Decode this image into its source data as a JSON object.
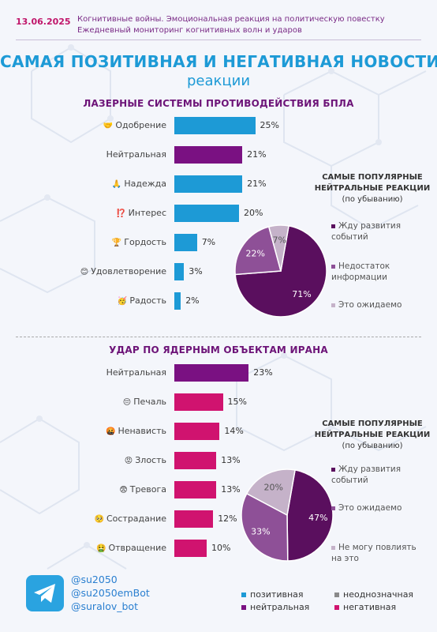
{
  "header": {
    "date": "13.06.2025",
    "subtitle_line1": "Когнитивные войны. Эмоциональная реакция на политическую повестку",
    "subtitle_line2": "Ежедневный мониторинг когнитивных волн и ударов",
    "title": "САМАЯ ПОЗИТИВНАЯ И НЕГАТИВНАЯ НОВОСТИ",
    "title_sub": "реакции"
  },
  "colors": {
    "positive": "#1d9ad6",
    "neutral": "#7a1182",
    "ambiguous": "#8a8a8a",
    "negative": "#d0136f",
    "pie_dark": "#5a0f5e",
    "pie_mid": "#8e5097",
    "pie_light": "#c5b2c9"
  },
  "chart_data": [
    {
      "type": "bar",
      "orientation": "horizontal",
      "title": "ЛАЗЕРНЫЕ СИСТЕМЫ ПРОТИВОДЕЙСТВИЯ БПЛА",
      "categories": [
        "Одобрение",
        "Нейтральная",
        "Надежда",
        "Интерес",
        "Гордость",
        "Удовлетворение",
        "Радость"
      ],
      "emojis": [
        "🤝",
        "",
        "🙏",
        "⁉️",
        "🏆",
        "😊",
        "🥳"
      ],
      "values": [
        25,
        21,
        21,
        20,
        7,
        3,
        2
      ],
      "value_labels": [
        "25%",
        "21%",
        "21%",
        "20%",
        "7%",
        "3%",
        "2%"
      ],
      "bar_types": [
        "positive",
        "neutral",
        "positive",
        "positive",
        "positive",
        "positive",
        "positive"
      ]
    },
    {
      "type": "pie",
      "title": "САМЫЕ ПОПУЛЯРНЫЕ НЕЙТРАЛЬНЫЕ РЕАКЦИИ",
      "title_line1": "САМЫЕ ПОПУЛЯРНЫЕ",
      "title_line2": "НЕЙТРАЛЬНЫЕ РЕАКЦИИ",
      "subtitle": "(по убыванию)",
      "labels": [
        "Жду развития событий",
        "Недостаток информации",
        "Это ожидаемо"
      ],
      "values": [
        71,
        22,
        7
      ],
      "value_labels": [
        "71%",
        "22%",
        "7%"
      ],
      "colors": [
        "#5a0f5e",
        "#8e5097",
        "#c5b2c9"
      ]
    },
    {
      "type": "bar",
      "orientation": "horizontal",
      "title": "УДАР ПО ЯДЕРНЫМ ОБЪЕКТАМ ИРАНА",
      "categories": [
        "Нейтральная",
        "Печаль",
        "Ненависть",
        "Злость",
        "Тревога",
        "Сострадание",
        "Отвращение"
      ],
      "emojis": [
        "",
        "😔",
        "🤬",
        "😡",
        "😨",
        "🥺",
        "🤮"
      ],
      "values": [
        23,
        15,
        14,
        13,
        13,
        12,
        10
      ],
      "value_labels": [
        "23%",
        "15%",
        "14%",
        "13%",
        "13%",
        "12%",
        "10%"
      ],
      "bar_types": [
        "neutral",
        "negative",
        "negative",
        "negative",
        "negative",
        "negative",
        "negative"
      ]
    },
    {
      "type": "pie",
      "title": "САМЫЕ ПОПУЛЯРНЫЕ НЕЙТРАЛЬНЫЕ РЕАКЦИИ",
      "title_line1": "САМЫЕ ПОПУЛЯРНЫЕ",
      "title_line2": "НЕЙТРАЛЬНЫЕ РЕАКЦИИ",
      "subtitle": "(по убыванию)",
      "labels": [
        "Жду развития событий",
        "Это ожидаемо",
        "Не могу повлиять на это"
      ],
      "values": [
        47,
        33,
        20
      ],
      "value_labels": [
        "47%",
        "33%",
        "20%"
      ],
      "colors": [
        "#5a0f5e",
        "#8e5097",
        "#c5b2c9"
      ]
    }
  ],
  "footer": {
    "handles": [
      "@su2050",
      "@su2050emBot",
      "@suralov_bot"
    ],
    "legend": [
      {
        "label": "позитивная",
        "type": "positive"
      },
      {
        "label": "неоднозначная",
        "type": "ambiguous"
      },
      {
        "label": "нейтральная",
        "type": "neutral"
      },
      {
        "label": "негативная",
        "type": "negative"
      }
    ]
  }
}
